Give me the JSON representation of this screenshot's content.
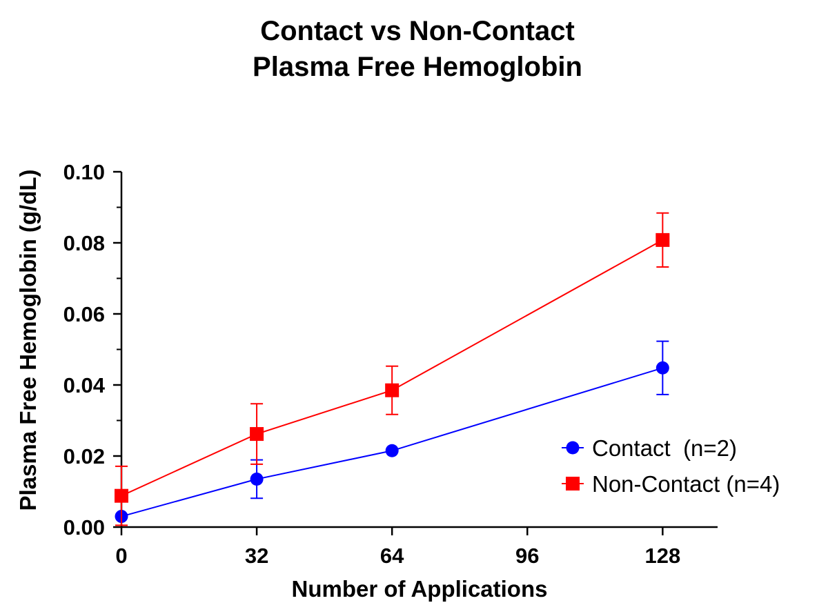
{
  "chart_data": {
    "type": "line",
    "title": [
      "Contact vs Non-Contact",
      "Plasma Free Hemoglobin"
    ],
    "xlabel": "Number of Applications",
    "ylabel": "Plasma Free Hemoglobin (g/dL)",
    "xlim": [
      0,
      141
    ],
    "ylim": [
      0,
      0.1
    ],
    "x_ticks": [
      0,
      32,
      64,
      96,
      128
    ],
    "x_tick_labels": [
      "0",
      "32",
      "64",
      "96",
      "128"
    ],
    "y_ticks": [
      0,
      0.02,
      0.04,
      0.06,
      0.08,
      0.1
    ],
    "y_tick_labels": [
      "0.00",
      "0.02",
      "0.04",
      "0.06",
      "0.08",
      "0.10"
    ],
    "y_minor_step": 0.01,
    "grid": false,
    "legend_position": "right",
    "series": [
      {
        "name": "Contact  (n=2)",
        "color": "#0000ff",
        "marker": "circle",
        "x": [
          0,
          32,
          64,
          128
        ],
        "values": [
          0.003,
          0.0135,
          0.0215,
          0.0448
        ],
        "errors": [
          0,
          0.0054,
          0,
          0.0075
        ]
      },
      {
        "name": "Non-Contact (n=4)",
        "color": "#ff0000",
        "marker": "square",
        "x": [
          0,
          32,
          64,
          128
        ],
        "values": [
          0.0088,
          0.0262,
          0.0385,
          0.0808
        ],
        "errors": [
          0.0083,
          0.0085,
          0.0068,
          0.0076
        ]
      }
    ]
  }
}
